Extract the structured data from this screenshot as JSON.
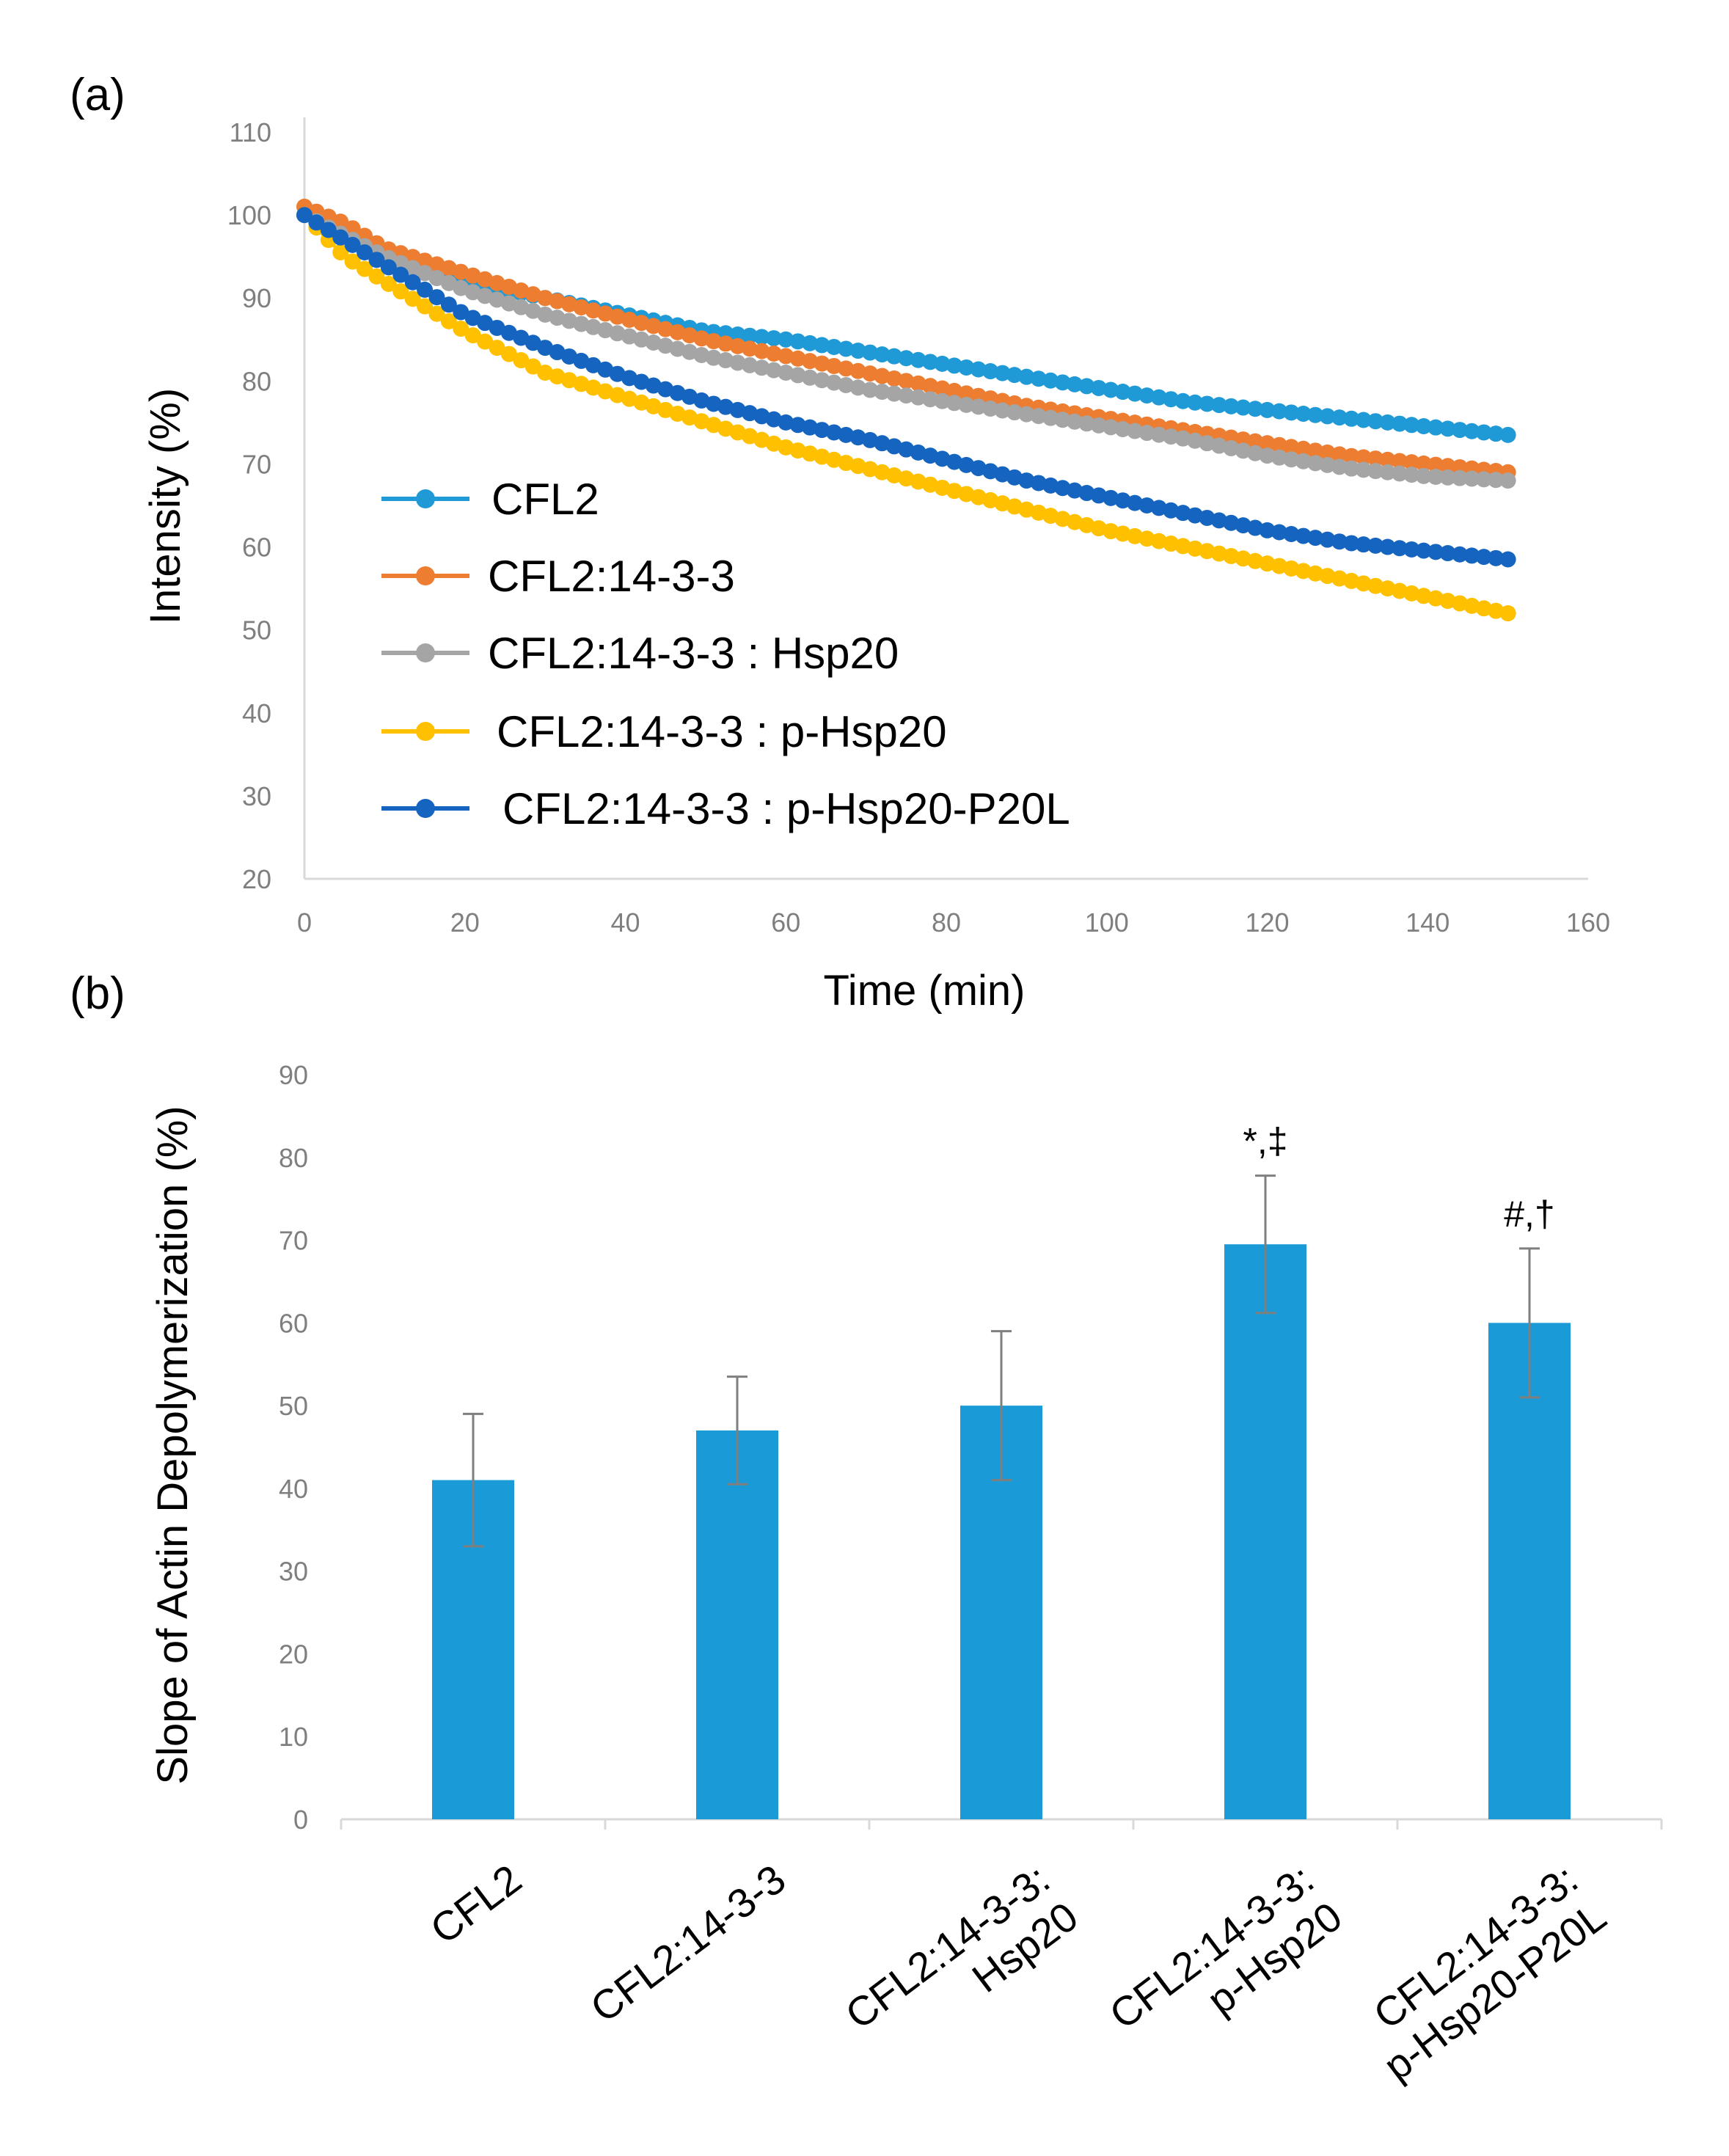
{
  "chart_data": [
    {
      "panel": "(a)",
      "type": "line",
      "xlabel": "Time (min)",
      "ylabel": "Intensity  (%)",
      "xlim": [
        0,
        160
      ],
      "ylim": [
        20,
        110
      ],
      "xticks": [
        "0",
        "20",
        "40",
        "60",
        "80",
        "100",
        "120",
        "140",
        "160"
      ],
      "yticks": [
        "20",
        "30",
        "40",
        "50",
        "60",
        "70",
        "80",
        "90",
        "100",
        "110"
      ],
      "grid": false,
      "legend_position": "lower-left",
      "series": [
        {
          "name": "CFL2",
          "color": "#1f9ad6",
          "x": [
            0,
            5,
            10,
            20,
            30,
            40,
            50,
            60,
            70,
            80,
            90,
            100,
            110,
            120,
            130,
            140,
            150
          ],
          "y": [
            100,
            97,
            95,
            92,
            90,
            88,
            86,
            85,
            83.5,
            82,
            80.5,
            79,
            77.5,
            76.5,
            75.5,
            74.5,
            73.5
          ]
        },
        {
          "name": "CFL2:14-3-3",
          "color": "#ed7d31",
          "x": [
            0,
            5,
            10,
            20,
            30,
            40,
            50,
            60,
            70,
            80,
            90,
            100,
            110,
            120,
            130,
            140,
            150
          ],
          "y": [
            101,
            99,
            96,
            93,
            90,
            87.5,
            85,
            83,
            81,
            79,
            77,
            75.5,
            74,
            72.5,
            71,
            70,
            69
          ]
        },
        {
          "name": "CFL2:14-3-3 : Hsp20",
          "color": "#a5a5a5",
          "x": [
            0,
            5,
            10,
            20,
            30,
            40,
            50,
            60,
            70,
            80,
            90,
            100,
            110,
            120,
            130,
            140,
            150
          ],
          "y": [
            100,
            97.5,
            95,
            91,
            88,
            85.5,
            83,
            81,
            79,
            77.5,
            76,
            74.5,
            73,
            71,
            69.5,
            68.5,
            68
          ]
        },
        {
          "name": "CFL2:14-3-3 : p-Hsp20",
          "color": "#ffc000",
          "x": [
            0,
            5,
            10,
            20,
            30,
            40,
            50,
            60,
            70,
            80,
            90,
            100,
            110,
            120,
            130,
            140,
            150
          ],
          "y": [
            100,
            95,
            92,
            86,
            81,
            78,
            75,
            72,
            69.5,
            67,
            64.5,
            62,
            60,
            58,
            56,
            54,
            52
          ]
        },
        {
          "name": "CFL2:14-3-3 : p-Hsp20-P20L",
          "color": "#1565c0",
          "x": [
            0,
            5,
            10,
            20,
            30,
            40,
            50,
            60,
            70,
            80,
            90,
            100,
            110,
            120,
            130,
            140,
            150
          ],
          "y": [
            100,
            97,
            94,
            88,
            84,
            80.5,
            77.5,
            75,
            73,
            70.5,
            68,
            66,
            64,
            62,
            60.5,
            59.5,
            58.5
          ]
        }
      ]
    },
    {
      "panel": "(b)",
      "type": "bar",
      "ylabel": "Slope of Actin Depolymerization  (%)",
      "xlabel": "",
      "ylim": [
        0,
        90
      ],
      "yticks": [
        "0",
        "10",
        "20",
        "30",
        "40",
        "50",
        "60",
        "70",
        "80",
        "90"
      ],
      "bar_color": "#1a9bd7",
      "categories": [
        [
          "CFL2"
        ],
        [
          "CFL2:14-3-3"
        ],
        [
          "CFL2:14-3-3:",
          "Hsp20"
        ],
        [
          "CFL2:14-3-3:",
          "p-Hsp20"
        ],
        [
          "CFL2:14-3-3:",
          "p-Hsp20-P20L"
        ]
      ],
      "values": [
        41,
        47,
        50,
        69.5,
        60
      ],
      "errors": [
        8,
        6.5,
        9,
        8.3,
        9
      ],
      "annotations": [
        "",
        "",
        "",
        "*,‡",
        "#,†"
      ]
    }
  ]
}
